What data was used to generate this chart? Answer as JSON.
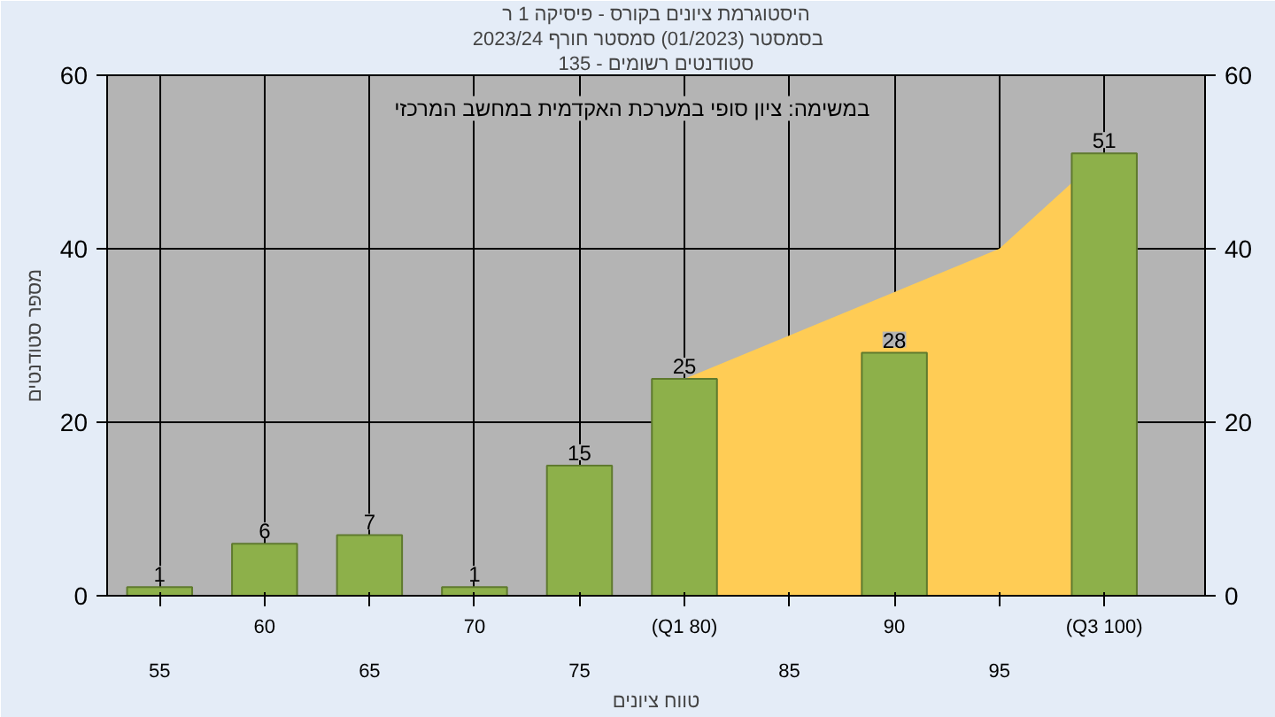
{
  "chart_data": {
    "type": "bar",
    "title": "היסטוגרמת ציונים בקורס - פיסיקה 1 ר",
    "subtitle": "בסמסטר  (01/2023)  סמסטר חורף  2023/24",
    "xlabel": "טווח ציונים",
    "ylabel": "מספר סטודנטים",
    "annotations": [
      "סטודנטים רשומים - 135",
      "במשימה: ציון סופי במערכת האקדמית במחשב המרכזי"
    ],
    "categories": [
      "55",
      "60",
      "65",
      "70",
      "75",
      "(Q1 80)",
      "85",
      "90",
      "95",
      "(Q3 100)"
    ],
    "series": [
      {
        "type": "area",
        "color": "#ffcc55",
        "values": [
          null,
          null,
          null,
          null,
          null,
          25,
          30,
          35,
          40,
          51
        ]
      },
      {
        "color": "#8db04a",
        "values": [
          1,
          6,
          7,
          1,
          15,
          25,
          null,
          28,
          null,
          51
        ],
        "value_labels": [
          "1",
          "6",
          "7",
          "1",
          "15",
          "25",
          null,
          "28",
          null,
          "51"
        ]
      }
    ],
    "ylim": [
      0,
      60
    ],
    "yticks": [
      0,
      20,
      40,
      60
    ],
    "y2lim": [
      0,
      60
    ],
    "y2ticks": [
      0,
      20,
      40,
      60
    ],
    "grid": true
  }
}
